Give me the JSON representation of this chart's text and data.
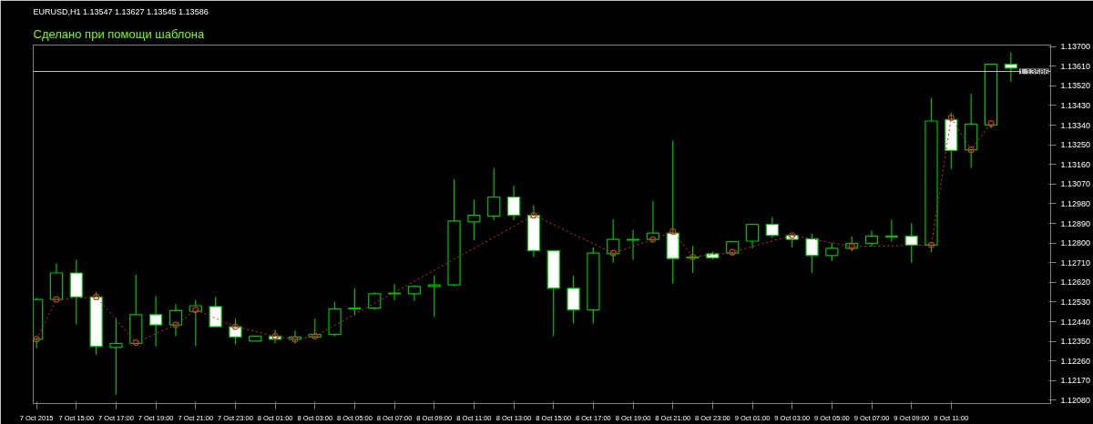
{
  "chart_data": {
    "type": "candlestick",
    "title": "EURUSD,H1 1.13547 1.13627 1.13545 1.13586",
    "subtitle": "Сделано при помощи шаблона",
    "x": [
      "2015-10-07T13:00",
      "2015-10-07T14:00",
      "2015-10-07T15:00",
      "2015-10-07T16:00",
      "2015-10-07T17:00",
      "2015-10-07T18:00",
      "2015-10-07T19:00",
      "2015-10-07T20:00",
      "2015-10-07T21:00",
      "2015-10-07T22:00",
      "2015-10-07T23:00",
      "2015-10-08T00:00",
      "2015-10-08T01:00",
      "2015-10-08T02:00",
      "2015-10-08T03:00",
      "2015-10-08T04:00",
      "2015-10-08T05:00",
      "2015-10-08T06:00",
      "2015-10-08T07:00",
      "2015-10-08T08:00",
      "2015-10-08T09:00",
      "2015-10-08T10:00",
      "2015-10-08T11:00",
      "2015-10-08T12:00",
      "2015-10-08T13:00",
      "2015-10-08T14:00",
      "2015-10-08T15:00",
      "2015-10-08T16:00",
      "2015-10-08T17:00",
      "2015-10-08T18:00",
      "2015-10-08T19:00",
      "2015-10-08T20:00",
      "2015-10-08T21:00",
      "2015-10-08T22:00",
      "2015-10-08T23:00",
      "2015-10-09T00:00",
      "2015-10-09T01:00",
      "2015-10-09T02:00",
      "2015-10-09T03:00",
      "2015-10-09T04:00",
      "2015-10-09T05:00",
      "2015-10-09T06:00",
      "2015-10-09T07:00",
      "2015-10-09T08:00",
      "2015-10-09T09:00",
      "2015-10-09T10:00",
      "2015-10-09T11:00",
      "2015-10-09T12:00",
      "2015-10-09T13:00",
      "2015-10-09T14:00"
    ],
    "ohlc": [
      [
        1.12359,
        1.12549,
        1.12318,
        1.12542
      ],
      [
        1.12542,
        1.12707,
        1.12542,
        1.12663
      ],
      [
        1.12663,
        1.12725,
        1.12428,
        1.12553
      ],
      [
        1.12553,
        1.12575,
        1.12289,
        1.12326
      ],
      [
        1.12322,
        1.12458,
        1.12106,
        1.1234
      ],
      [
        1.1234,
        1.12655,
        1.1234,
        1.12472
      ],
      [
        1.12472,
        1.12557,
        1.12326,
        1.12425
      ],
      [
        1.12425,
        1.1252,
        1.12373,
        1.12491
      ],
      [
        1.12487,
        1.12538,
        1.12329,
        1.12513
      ],
      [
        1.12509,
        1.12553,
        1.12417,
        1.12417
      ],
      [
        1.12417,
        1.12454,
        1.12337,
        1.1237
      ],
      [
        1.12351,
        1.12373,
        1.12351,
        1.12373
      ],
      [
        1.12373,
        1.12403,
        1.1234,
        1.12359
      ],
      [
        1.12359,
        1.12399,
        1.1234,
        1.1237
      ],
      [
        1.1237,
        1.12454,
        1.1237,
        1.12381
      ],
      [
        1.12381,
        1.12531,
        1.12373,
        1.12498
      ],
      [
        1.12498,
        1.12593,
        1.12469,
        1.12502
      ],
      [
        1.12502,
        1.12575,
        1.12494,
        1.12568
      ],
      [
        1.12568,
        1.12612,
        1.12538,
        1.12571
      ],
      [
        1.12568,
        1.12608,
        1.12535,
        1.12601
      ],
      [
        1.12601,
        1.12652,
        1.12461,
        1.12608
      ],
      [
        1.12608,
        1.13092,
        1.12601,
        1.12901
      ],
      [
        1.12897,
        1.13,
        1.12813,
        1.12927
      ],
      [
        1.12923,
        1.13143,
        1.12905,
        1.13011
      ],
      [
        1.13011,
        1.13062,
        1.12905,
        1.12927
      ],
      [
        1.12927,
        1.12974,
        1.12736,
        1.12765
      ],
      [
        1.12765,
        1.12765,
        1.12373,
        1.12593
      ],
      [
        1.12593,
        1.12652,
        1.12432,
        1.12494
      ],
      [
        1.12494,
        1.1278,
        1.12432,
        1.12754
      ],
      [
        1.12751,
        1.12908,
        1.1271,
        1.12817
      ],
      [
        1.12813,
        1.12861,
        1.12725,
        1.12817
      ],
      [
        1.12817,
        1.12993,
        1.12806,
        1.12846
      ],
      [
        1.12846,
        1.13268,
        1.12615,
        1.12729
      ],
      [
        1.12732,
        1.12787,
        1.12663,
        1.12736
      ],
      [
        1.12751,
        1.12762,
        1.12725,
        1.12732
      ],
      [
        1.12754,
        1.12809,
        1.12743,
        1.12806
      ],
      [
        1.12809,
        1.1289,
        1.12776,
        1.12886
      ],
      [
        1.12886,
        1.12919,
        1.12824,
        1.12835
      ],
      [
        1.12835,
        1.12842,
        1.1278,
        1.12817
      ],
      [
        1.1282,
        1.12842,
        1.12663,
        1.12743
      ],
      [
        1.12743,
        1.12802,
        1.12718,
        1.12776
      ],
      [
        1.12776,
        1.12831,
        1.12762,
        1.12798
      ],
      [
        1.12798,
        1.12857,
        1.12784,
        1.12831
      ],
      [
        1.12828,
        1.12905,
        1.12806,
        1.12831
      ],
      [
        1.12831,
        1.1289,
        1.1271,
        1.12791
      ],
      [
        1.12791,
        1.13465,
        1.12758,
        1.13359
      ],
      [
        1.13366,
        1.13399,
        1.13139,
        1.13224
      ],
      [
        1.13227,
        1.13484,
        1.13143,
        1.13345
      ],
      [
        1.13341,
        1.13623,
        1.13326,
        1.13619
      ],
      [
        1.13619,
        1.13674,
        1.13539,
        1.13601
      ]
    ],
    "color": "#00c000",
    "colors": [
      "#000000",
      "#000000",
      "#ffffff",
      "#ffffff",
      "#000000",
      "#000000",
      "#ffffff",
      "#000000",
      "#000000",
      "#ffffff",
      "#ffffff",
      "#000000",
      "#ffffff",
      "#000000",
      "#000000",
      "#000000",
      "#000000",
      "#000000",
      "#000000",
      "#000000",
      "#000000",
      "#000000",
      "#000000",
      "#000000",
      "#ffffff",
      "#ffffff",
      "#ffffff",
      "#ffffff",
      "#000000",
      "#000000",
      "#000000",
      "#000000",
      "#ffffff",
      "#000000",
      "#ffffff",
      "#000000",
      "#000000",
      "#ffffff",
      "#ffffff",
      "#ffffff",
      "#000000",
      "#000000",
      "#000000",
      "#000000",
      "#ffffff",
      "#000000",
      "#ffffff",
      "#000000",
      "#000000",
      "#ffffff"
    ],
    "series": [
      {
        "type": "line",
        "color": "#d03030",
        "line_style": "dotted",
        "marker": "circle",
        "x": [
          "2015-10-07T13:00",
          "2015-10-07T14:00",
          "2015-10-07T16:00",
          "2015-10-07T18:00",
          "2015-10-07T20:00",
          "2015-10-07T21:00",
          "2015-10-07T23:00",
          "2015-10-08T01:00",
          "2015-10-08T02:00",
          "2015-10-08T03:00",
          "2015-10-08T14:00",
          "2015-10-08T18:00",
          "2015-10-08T20:00",
          "2015-10-08T21:00",
          "2015-10-08T22:00",
          "2015-10-09T00:00",
          "2015-10-09T03:00",
          "2015-10-09T06:00",
          "2015-10-09T10:00",
          "2015-10-09T11:00",
          "2015-10-09T12:00",
          "2015-10-09T13:00"
        ],
        "values": [
          1.12359,
          1.12542,
          1.12553,
          1.12344,
          1.12425,
          1.12494,
          1.12417,
          1.12373,
          1.12359,
          1.12373,
          1.12927,
          1.12754,
          1.12817,
          1.12853,
          1.12736,
          1.12758,
          1.12835,
          1.12784,
          1.12791,
          1.13374,
          1.13227,
          1.13348
        ]
      }
    ],
    "ref_lines": [
      {
        "axis": "y",
        "value": 1.13586,
        "label": "1.13586",
        "color": "#c0c0c0"
      }
    ],
    "xlim": [
      "2015-10-07T12:50",
      "2015-10-09T16:00"
    ],
    "ylim": [
      1.12065,
      1.13707
    ],
    "xticks": [
      {
        "value": "2015-10-07T13:00",
        "label": "7 Oct 2015"
      },
      {
        "value": "2015-10-07T15:00",
        "label": "7 Oct 15:00"
      },
      {
        "value": "2015-10-07T17:00",
        "label": "7 Oct 17:00"
      },
      {
        "value": "2015-10-07T19:00",
        "label": "7 Oct 19:00"
      },
      {
        "value": "2015-10-07T21:00",
        "label": "7 Oct 21:00"
      },
      {
        "value": "2015-10-07T23:00",
        "label": "7 Oct 23:00"
      },
      {
        "value": "2015-10-08T01:00",
        "label": "8 Oct 01:00"
      },
      {
        "value": "2015-10-08T03:00",
        "label": "8 Oct 03:00"
      },
      {
        "value": "2015-10-08T05:00",
        "label": "8 Oct 05:00"
      },
      {
        "value": "2015-10-08T07:00",
        "label": "8 Oct 07:00"
      },
      {
        "value": "2015-10-08T09:00",
        "label": "8 Oct 09:00"
      },
      {
        "value": "2015-10-08T11:00",
        "label": "8 Oct 11:00"
      },
      {
        "value": "2015-10-08T13:00",
        "label": "8 Oct 13:00"
      },
      {
        "value": "2015-10-08T15:00",
        "label": "8 Oct 15:00"
      },
      {
        "value": "2015-10-08T17:00",
        "label": "8 Oct 17:00"
      },
      {
        "value": "2015-10-08T19:00",
        "label": "8 Oct 19:00"
      },
      {
        "value": "2015-10-08T21:00",
        "label": "8 Oct 21:00"
      },
      {
        "value": "2015-10-08T23:00",
        "label": "8 Oct 23:00"
      },
      {
        "value": "2015-10-09T01:00",
        "label": "9 Oct 01:00"
      },
      {
        "value": "2015-10-09T03:00",
        "label": "9 Oct 03:00"
      },
      {
        "value": "2015-10-09T05:00",
        "label": "9 Oct 05:00"
      },
      {
        "value": "2015-10-09T07:00",
        "label": "9 Oct 07:00"
      },
      {
        "value": "2015-10-09T09:00",
        "label": "9 Oct 09:00"
      },
      {
        "value": "2015-10-09T11:00",
        "label": "9 Oct 11:00"
      }
    ],
    "yticks": [
      {
        "value": 1.1208,
        "label": "1.12080"
      },
      {
        "value": 1.1217,
        "label": "1.12170"
      },
      {
        "value": 1.1226,
        "label": "1.12260"
      },
      {
        "value": 1.1235,
        "label": "1.12350"
      },
      {
        "value": 1.1244,
        "label": "1.12440"
      },
      {
        "value": 1.1253,
        "label": "1.12530"
      },
      {
        "value": 1.1262,
        "label": "1.12620"
      },
      {
        "value": 1.1271,
        "label": "1.12710"
      },
      {
        "value": 1.128,
        "label": "1.12800"
      },
      {
        "value": 1.1289,
        "label": "1.12890"
      },
      {
        "value": 1.1298,
        "label": "1.12980"
      },
      {
        "value": 1.1307,
        "label": "1.13070"
      },
      {
        "value": 1.1316,
        "label": "1.13160"
      },
      {
        "value": 1.1325,
        "label": "1.13250"
      },
      {
        "value": 1.1334,
        "label": "1.13340"
      },
      {
        "value": 1.1343,
        "label": "1.13430"
      },
      {
        "value": 1.1352,
        "label": "1.13520"
      },
      {
        "value": 1.1361,
        "label": "1.13610"
      },
      {
        "value": 1.137,
        "label": "1.13700"
      }
    ],
    "grid": false
  }
}
